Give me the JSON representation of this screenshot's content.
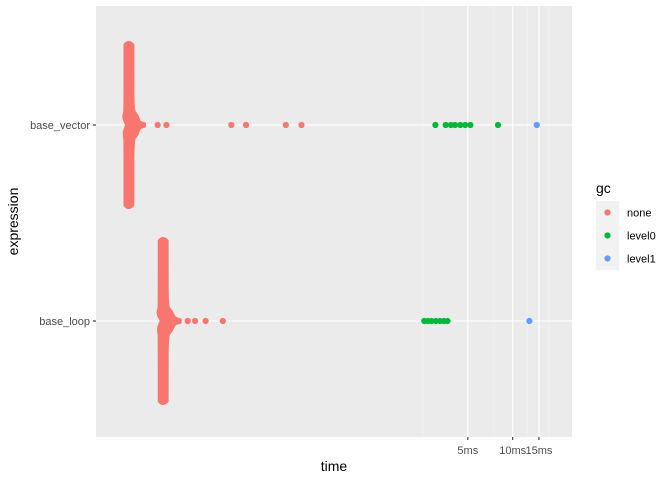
{
  "chart_data": {
    "type": "scatter",
    "xlabel": "time",
    "ylabel": "expression",
    "x_scale": "log",
    "x_range_ms": [
      0.016,
      25
    ],
    "x_ticks": [
      {
        "label": "5ms",
        "value_ms": 5
      },
      {
        "label": "10ms",
        "value_ms": 10
      },
      {
        "label": "15ms",
        "value_ms": 15
      }
    ],
    "categories": [
      "base_loop",
      "base_vector"
    ],
    "grid": true,
    "legend": {
      "title": "gc",
      "position": "right",
      "entries": [
        {
          "label": "none",
          "color": "#F8766D"
        },
        {
          "label": "level0",
          "color": "#00BA38"
        },
        {
          "label": "level1",
          "color": "#619CFF"
        }
      ]
    },
    "series": [
      {
        "expression": "base_vector",
        "dense": {
          "gc": "none",
          "mode_ms": 0.0265,
          "min_ms": 0.0255,
          "tail_to_ms": 0.034,
          "spread": 0.82
        },
        "points": [
          {
            "x_ms": 0.0415,
            "gc": "none"
          },
          {
            "x_ms": 0.0475,
            "gc": "none"
          },
          {
            "x_ms": 0.1295,
            "gc": "none"
          },
          {
            "x_ms": 0.1625,
            "gc": "none"
          },
          {
            "x_ms": 0.3005,
            "gc": "none"
          },
          {
            "x_ms": 0.3825,
            "gc": "none"
          },
          {
            "x_ms": 3.03,
            "gc": "level0"
          },
          {
            "x_ms": 3.55,
            "gc": "level0"
          },
          {
            "x_ms": 3.85,
            "gc": "level0"
          },
          {
            "x_ms": 4.1,
            "gc": "level0"
          },
          {
            "x_ms": 4.45,
            "gc": "level0"
          },
          {
            "x_ms": 4.8,
            "gc": "level0"
          },
          {
            "x_ms": 5.2,
            "gc": "level0"
          },
          {
            "x_ms": 7.97,
            "gc": "level0"
          },
          {
            "x_ms": 14.5,
            "gc": "level1"
          }
        ]
      },
      {
        "expression": "base_loop",
        "dense": {
          "gc": "none",
          "mode_ms": 0.045,
          "min_ms": 0.0435,
          "tail_to_ms": 0.059,
          "spread": 0.82
        },
        "points": [
          {
            "x_ms": 0.066,
            "gc": "none"
          },
          {
            "x_ms": 0.074,
            "gc": "none"
          },
          {
            "x_ms": 0.087,
            "gc": "none"
          },
          {
            "x_ms": 0.1135,
            "gc": "none"
          },
          {
            "x_ms": 2.55,
            "gc": "level0"
          },
          {
            "x_ms": 2.7,
            "gc": "level0"
          },
          {
            "x_ms": 2.85,
            "gc": "level0"
          },
          {
            "x_ms": 3.05,
            "gc": "level0"
          },
          {
            "x_ms": 3.25,
            "gc": "level0"
          },
          {
            "x_ms": 3.45,
            "gc": "level0"
          },
          {
            "x_ms": 3.65,
            "gc": "level0"
          },
          {
            "x_ms": 12.94,
            "gc": "level1"
          }
        ]
      }
    ]
  }
}
